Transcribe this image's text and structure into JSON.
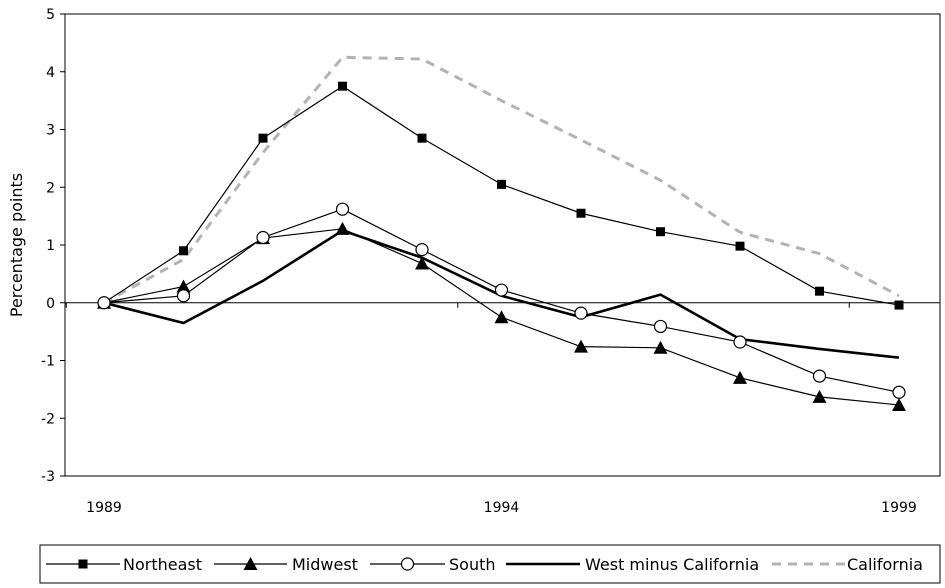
{
  "chart_data": {
    "type": "line",
    "title": "",
    "xlabel": "",
    "ylabel": "Percentage points",
    "xlim": [
      1989,
      1999
    ],
    "ylim": [
      -3,
      5
    ],
    "x_ticks": [
      1989,
      1994,
      1999
    ],
    "y_ticks": [
      5,
      4,
      3,
      2,
      1,
      0,
      -1,
      -2,
      -3
    ],
    "legend_position": "bottom",
    "grid": false,
    "x": [
      1989,
      1990,
      1991,
      1992,
      1993,
      1994,
      1995,
      1996,
      1997,
      1998,
      1999
    ],
    "series": [
      {
        "name": "Northeast",
        "marker": "square-filled",
        "color": "#000000",
        "values": [
          0,
          0.9,
          2.85,
          3.75,
          2.85,
          2.05,
          1.55,
          1.23,
          0.98,
          0.2,
          -0.04
        ]
      },
      {
        "name": "Midwest",
        "marker": "triangle-filled",
        "color": "#000000",
        "values": [
          0,
          0.28,
          1.12,
          1.28,
          0.68,
          -0.25,
          -0.76,
          -0.78,
          -1.3,
          -1.63,
          -1.77
        ]
      },
      {
        "name": "South",
        "marker": "circle-open",
        "color": "#000000",
        "values": [
          0,
          0.12,
          1.13,
          1.62,
          0.92,
          0.22,
          -0.18,
          -0.41,
          -0.68,
          -1.27,
          -1.55
        ]
      },
      {
        "name": "West minus California",
        "marker": "none",
        "color": "#000000",
        "values": [
          0,
          -0.35,
          0.38,
          1.25,
          0.78,
          0.12,
          -0.25,
          0.14,
          -0.63,
          -0.8,
          -0.95
        ]
      },
      {
        "name": "California",
        "marker": "none",
        "color": "#b3b3b3",
        "dashed": true,
        "values": [
          0,
          0.75,
          2.6,
          4.25,
          4.22,
          3.5,
          2.82,
          2.12,
          1.22,
          0.85,
          0.12
        ]
      }
    ]
  }
}
